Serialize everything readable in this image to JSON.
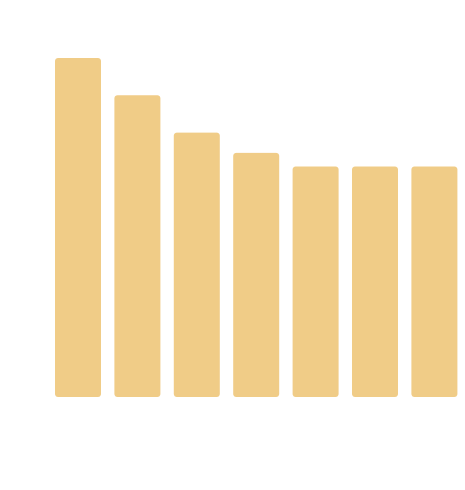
{
  "chart_data": {
    "type": "bar",
    "categories": [
      null,
      null,
      null,
      null,
      null,
      null,
      null
    ],
    "values": [
      100,
      89,
      78,
      72,
      68,
      68,
      68
    ],
    "color": "#f0cc87",
    "ylim": [
      0,
      100
    ]
  }
}
